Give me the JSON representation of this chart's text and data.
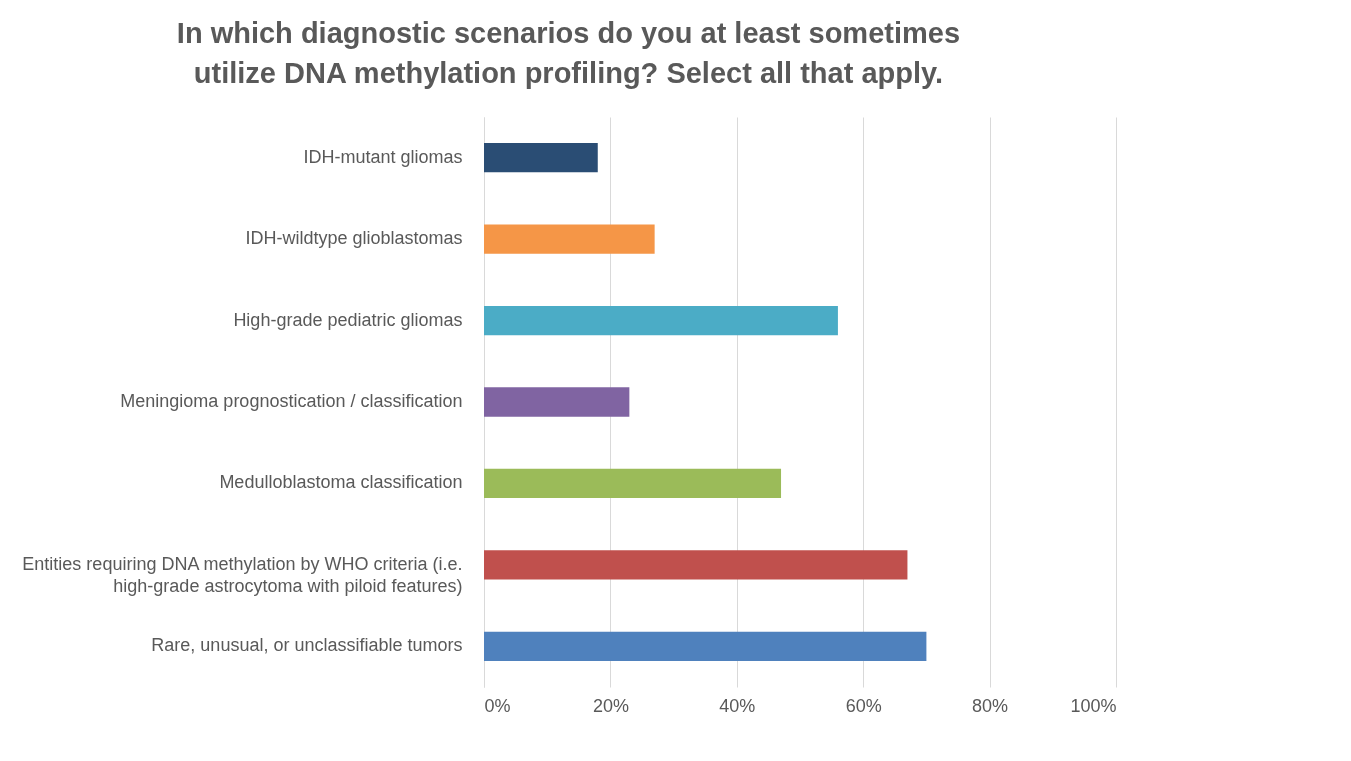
{
  "chart_data": {
    "type": "bar",
    "orientation": "horizontal",
    "title": "In which diagnostic scenarios do you at least sometimes utilize DNA methylation profiling? Select all that apply.",
    "categories": [
      "IDH-mutant gliomas",
      "IDH-wildtype glioblastomas",
      "High-grade pediatric gliomas",
      "Meningioma prognostication / classification",
      "Medulloblastoma classification",
      "Entities requiring DNA methylation by WHO criteria (i.e. high-grade astrocytoma with piloid features)",
      "Rare, unusual, or unclassifiable tumors"
    ],
    "values": [
      18,
      27,
      56,
      23,
      47,
      67,
      70
    ],
    "colors": [
      "#2a4d74",
      "#f59647",
      "#4bacc6",
      "#8064a2",
      "#9bbb59",
      "#c0504d",
      "#4f81bd"
    ],
    "xlim": [
      0,
      100
    ],
    "xticks": [
      {
        "value": 0,
        "label": "0%"
      },
      {
        "value": 20,
        "label": "20%"
      },
      {
        "value": 40,
        "label": "40%"
      },
      {
        "value": 60,
        "label": "60%"
      },
      {
        "value": 80,
        "label": "80%"
      },
      {
        "value": 100,
        "label": "100%"
      }
    ],
    "grid": "x"
  }
}
